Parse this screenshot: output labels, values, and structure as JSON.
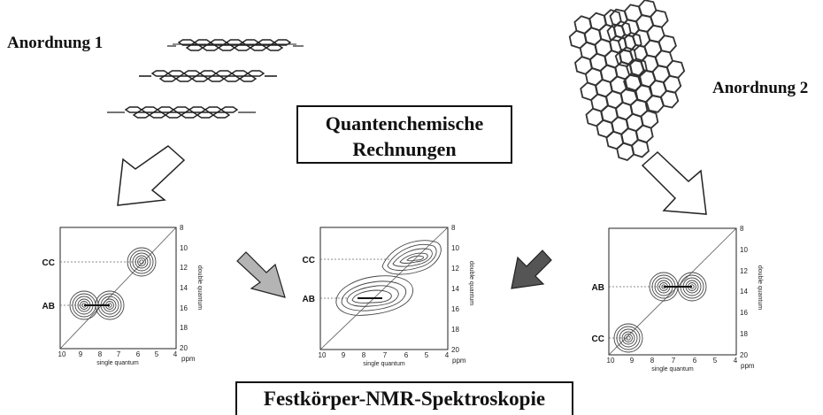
{
  "labels": {
    "arrangement_1": "Anordnung 1",
    "arrangement_2": "Anordnung 2"
  },
  "center_box": {
    "line1": "Quantenchemische",
    "line2": "Rechnungen"
  },
  "bottom_box": {
    "text": "Festkörper-NMR-Spektroskopie"
  },
  "spectra": {
    "x_axis_label": "single quantum",
    "y_axis_label": "double quantum",
    "unit": "ppm",
    "x_ticks": [
      "10",
      "9",
      "8",
      "7",
      "6",
      "5",
      "4"
    ],
    "y_ticks": [
      "8",
      "10",
      "12",
      "14",
      "16",
      "18",
      "20"
    ],
    "left": {
      "peak_labels": [
        "CC",
        "AB"
      ]
    },
    "middle": {
      "peak_labels": [
        "CC",
        "AB"
      ]
    },
    "right": {
      "peak_labels": [
        "AB",
        "CC"
      ]
    }
  },
  "colors": {
    "hollow_arrow": "#ffffff",
    "light_arrow": "#b4b4b4",
    "dark_arrow": "#555555"
  }
}
